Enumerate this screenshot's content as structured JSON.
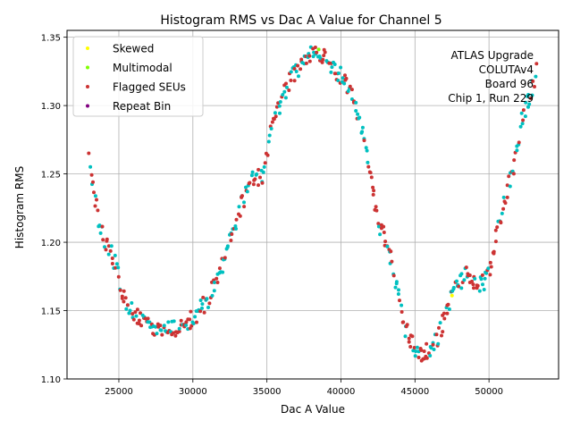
{
  "chart_data": {
    "type": "scatter",
    "title": "Histogram RMS vs Dac A Value for Channel 5",
    "xlabel": "Dac A Value",
    "ylabel": "Histogram RMS",
    "xlim": [
      21500,
      54700
    ],
    "ylim": [
      1.1,
      1.355
    ],
    "xticks": [
      25000,
      30000,
      35000,
      40000,
      45000,
      50000
    ],
    "xtick_labels": [
      "25000",
      "30000",
      "35000",
      "40000",
      "45000",
      "50000"
    ],
    "yticks": [
      1.1,
      1.15,
      1.2,
      1.25,
      1.3,
      1.35
    ],
    "ytick_labels": [
      "1.10",
      "1.15",
      "1.20",
      "1.25",
      "1.30",
      "1.35"
    ],
    "grid": true,
    "legend_position": "top-left",
    "legend": [
      {
        "label": "Skewed",
        "color": "#ffff00"
      },
      {
        "label": "Multimodal",
        "color": "#80ff00"
      },
      {
        "label": "Flagged SEUs",
        "color": "#cc3333"
      },
      {
        "label": "Repeat Bin",
        "color": "#800080"
      }
    ],
    "annotation": [
      "ATLAS Upgrade",
      "COLUTAv4",
      "Board 96",
      "Chip 1, Run 229"
    ],
    "series_colors": {
      "base": "#00c0c0",
      "flagged": "#cc3333",
      "skewed": "#ffff00",
      "multimodal": "#80ff00"
    },
    "curve_nodes": {
      "x": [
        23000,
        23300,
        23700,
        24200,
        24800,
        25300,
        25800,
        26500,
        27500,
        28500,
        29500,
        30200,
        31000,
        31800,
        32500,
        33300,
        34000,
        34700,
        35300,
        36000,
        36700,
        37500,
        38200,
        38700,
        39300,
        40000,
        40600,
        41200,
        41800,
        42400,
        43100,
        43700,
        44300,
        45000,
        45600,
        46200,
        46700,
        47200,
        47800,
        48500,
        49300,
        50000,
        50600,
        51200,
        51800,
        52300,
        52800,
        53200
      ],
      "y": [
        1.262,
        1.24,
        1.212,
        1.198,
        1.184,
        1.162,
        1.15,
        1.142,
        1.138,
        1.137,
        1.14,
        1.147,
        1.158,
        1.176,
        1.202,
        1.228,
        1.248,
        1.248,
        1.282,
        1.304,
        1.322,
        1.333,
        1.338,
        1.337,
        1.33,
        1.322,
        1.312,
        1.292,
        1.262,
        1.218,
        1.2,
        1.172,
        1.138,
        1.122,
        1.118,
        1.122,
        1.135,
        1.152,
        1.17,
        1.176,
        1.168,
        1.175,
        1.212,
        1.236,
        1.262,
        1.294,
        1.308,
        1.326
      ]
    },
    "point_density": 470,
    "flagged_fraction": 0.52,
    "skewed_points": [
      {
        "x": 47500,
        "y": 1.161
      }
    ],
    "multimodal_points": [
      {
        "x": 38500,
        "y": 1.341
      }
    ]
  }
}
